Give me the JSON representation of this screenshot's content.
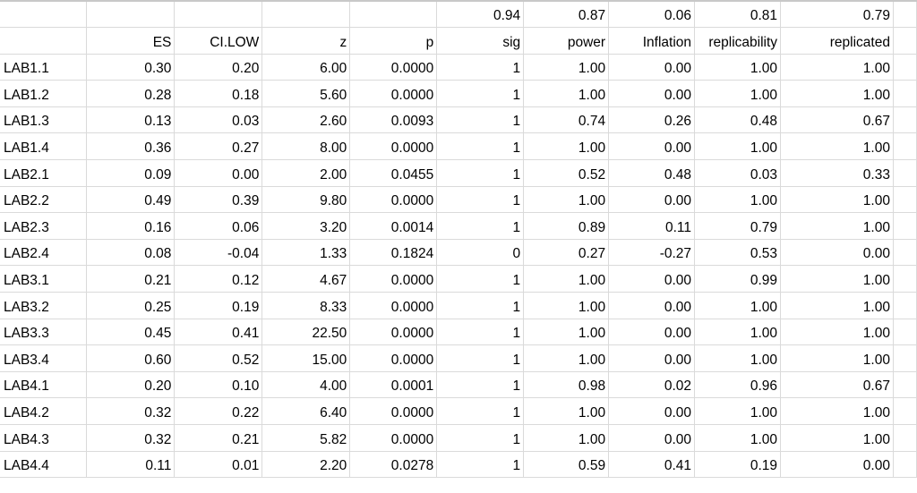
{
  "summary": [
    "",
    "",
    "",
    "",
    "",
    "0.94",
    "0.87",
    "0.06",
    "0.81",
    "0.79",
    ""
  ],
  "headers": [
    "",
    "ES",
    "CI.LOW",
    "z",
    "p",
    "sig",
    "power",
    "Inflation",
    "replicability",
    "replicated",
    ""
  ],
  "rows": [
    [
      "LAB1.1",
      "0.30",
      "0.20",
      "6.00",
      "0.0000",
      "1",
      "1.00",
      "0.00",
      "1.00",
      "1.00"
    ],
    [
      "LAB1.2",
      "0.28",
      "0.18",
      "5.60",
      "0.0000",
      "1",
      "1.00",
      "0.00",
      "1.00",
      "1.00"
    ],
    [
      "LAB1.3",
      "0.13",
      "0.03",
      "2.60",
      "0.0093",
      "1",
      "0.74",
      "0.26",
      "0.48",
      "0.67"
    ],
    [
      "LAB1.4",
      "0.36",
      "0.27",
      "8.00",
      "0.0000",
      "1",
      "1.00",
      "0.00",
      "1.00",
      "1.00"
    ],
    [
      "LAB2.1",
      "0.09",
      "0.00",
      "2.00",
      "0.0455",
      "1",
      "0.52",
      "0.48",
      "0.03",
      "0.33"
    ],
    [
      "LAB2.2",
      "0.49",
      "0.39",
      "9.80",
      "0.0000",
      "1",
      "1.00",
      "0.00",
      "1.00",
      "1.00"
    ],
    [
      "LAB2.3",
      "0.16",
      "0.06",
      "3.20",
      "0.0014",
      "1",
      "0.89",
      "0.11",
      "0.79",
      "1.00"
    ],
    [
      "LAB2.4",
      "0.08",
      "-0.04",
      "1.33",
      "0.1824",
      "0",
      "0.27",
      "-0.27",
      "0.53",
      "0.00"
    ],
    [
      "LAB3.1",
      "0.21",
      "0.12",
      "4.67",
      "0.0000",
      "1",
      "1.00",
      "0.00",
      "0.99",
      "1.00"
    ],
    [
      "LAB3.2",
      "0.25",
      "0.19",
      "8.33",
      "0.0000",
      "1",
      "1.00",
      "0.00",
      "1.00",
      "1.00"
    ],
    [
      "LAB3.3",
      "0.45",
      "0.41",
      "22.50",
      "0.0000",
      "1",
      "1.00",
      "0.00",
      "1.00",
      "1.00"
    ],
    [
      "LAB3.4",
      "0.60",
      "0.52",
      "15.00",
      "0.0000",
      "1",
      "1.00",
      "0.00",
      "1.00",
      "1.00"
    ],
    [
      "LAB4.1",
      "0.20",
      "0.10",
      "4.00",
      "0.0001",
      "1",
      "0.98",
      "0.02",
      "0.96",
      "0.67"
    ],
    [
      "LAB4.2",
      "0.32",
      "0.22",
      "6.40",
      "0.0000",
      "1",
      "1.00",
      "0.00",
      "1.00",
      "1.00"
    ],
    [
      "LAB4.3",
      "0.32",
      "0.21",
      "5.82",
      "0.0000",
      "1",
      "1.00",
      "0.00",
      "1.00",
      "1.00"
    ],
    [
      "LAB4.4",
      "0.11",
      "0.01",
      "2.20",
      "0.0278",
      "1",
      "0.59",
      "0.41",
      "0.19",
      "0.00"
    ]
  ]
}
